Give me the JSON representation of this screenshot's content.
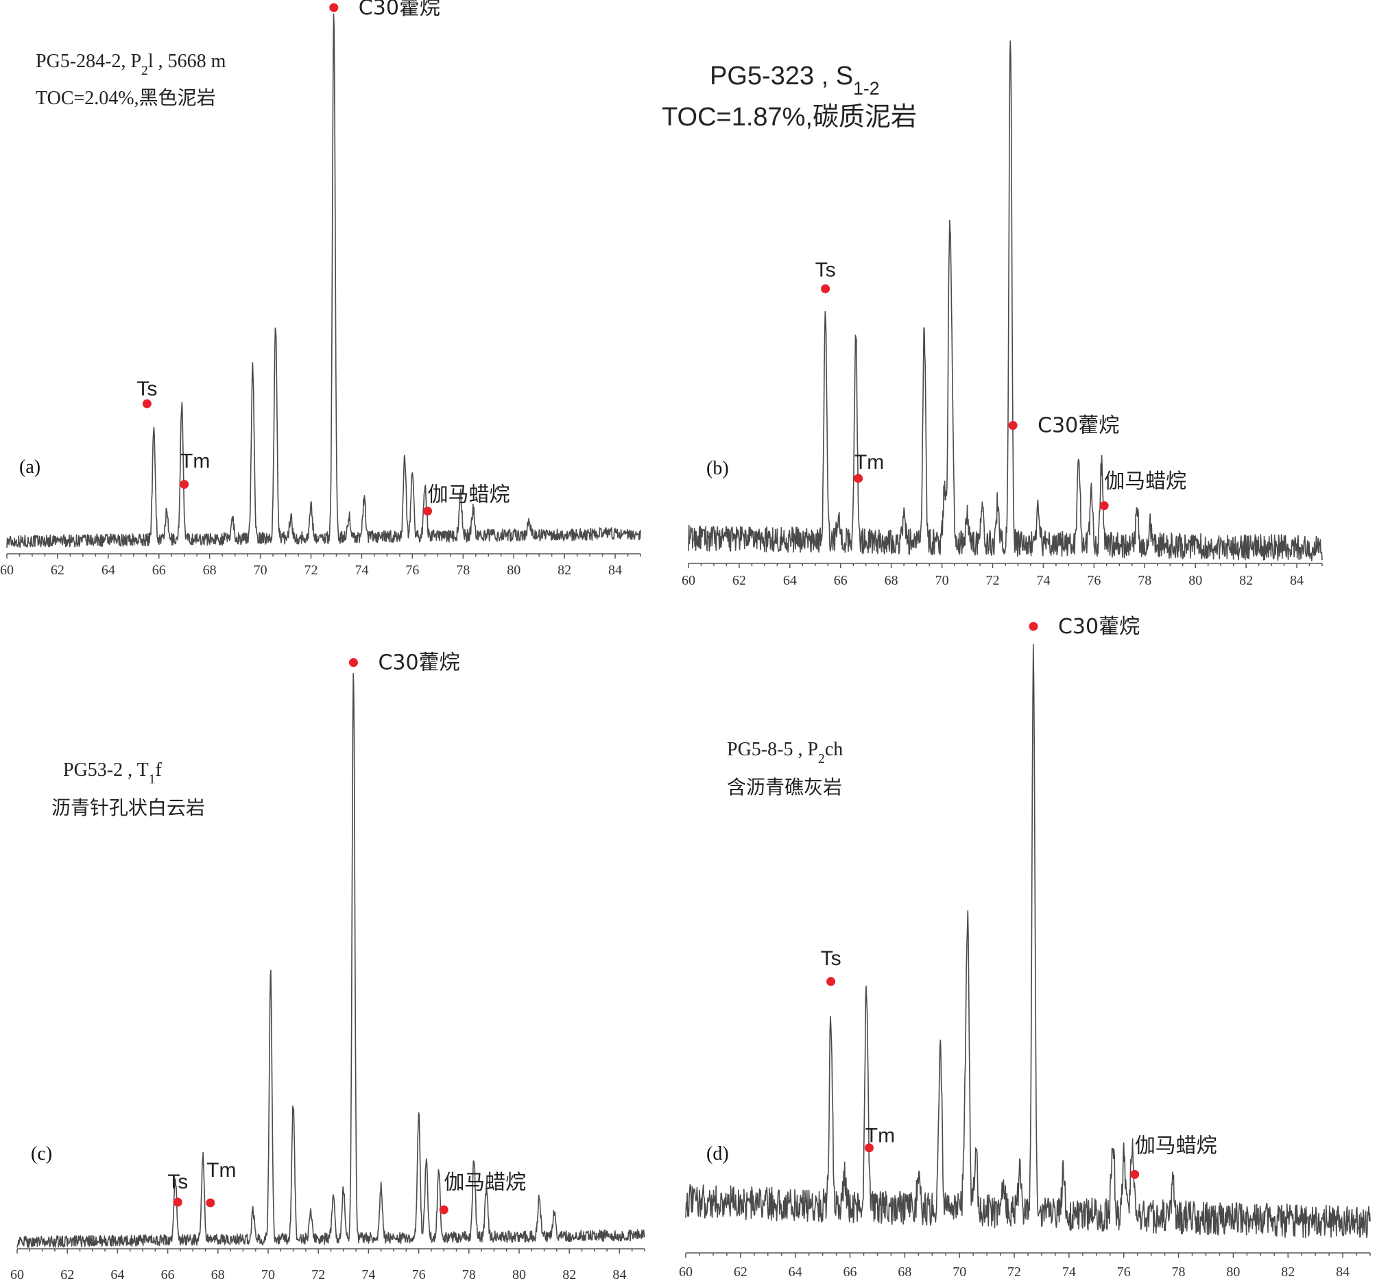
{
  "chart_data": [
    {
      "type": "line",
      "panel_label": "(a)",
      "info_lines": [
        {
          "parts": [
            {
              "t": "PG5-284-2, P"
            },
            {
              "t": "2",
              "sub": true
            },
            {
              "t": "l , 5668 m"
            }
          ]
        },
        {
          "parts": [
            {
              "t": "TOC=2.04%,黑色泥岩"
            }
          ]
        }
      ],
      "xlim": [
        60,
        85
      ],
      "x_ticks": [
        60,
        62,
        64,
        66,
        68,
        70,
        72,
        74,
        76,
        78,
        80,
        82,
        84
      ],
      "noise": 0.012,
      "baseline": [
        0.0,
        0.015
      ],
      "peaks": [
        {
          "x": 65.8,
          "h": 0.22
        },
        {
          "x": 66.3,
          "h": 0.05
        },
        {
          "x": 66.9,
          "h": 0.26
        },
        {
          "x": 68.9,
          "h": 0.04
        },
        {
          "x": 69.7,
          "h": 0.33
        },
        {
          "x": 70.6,
          "h": 0.41
        },
        {
          "x": 71.2,
          "h": 0.04
        },
        {
          "x": 72.0,
          "h": 0.06
        },
        {
          "x": 72.9,
          "h": 1.0
        },
        {
          "x": 73.5,
          "h": 0.04
        },
        {
          "x": 74.1,
          "h": 0.07
        },
        {
          "x": 75.7,
          "h": 0.15
        },
        {
          "x": 76.0,
          "h": 0.12
        },
        {
          "x": 76.5,
          "h": 0.1
        },
        {
          "x": 77.9,
          "h": 0.08
        },
        {
          "x": 78.4,
          "h": 0.05
        },
        {
          "x": 80.6,
          "h": 0.03
        }
      ],
      "annotations": [
        {
          "label": "Ts",
          "x": 65.8
        },
        {
          "label": "Tm",
          "x": 67.0
        },
        {
          "label": "C30藿烷",
          "x": 72.9
        },
        {
          "label": "伽马蜡烷",
          "x": 76.6
        }
      ],
      "marker_color": "#e8202a"
    },
    {
      "type": "line",
      "panel_label": "(b)",
      "info_lines": [
        {
          "parts": [
            {
              "t": "PG5-323 , S"
            },
            {
              "t": "1-2",
              "sub": true
            }
          ]
        },
        {
          "parts": [
            {
              "t": "TOC=1.87%,碳质泥岩"
            }
          ]
        }
      ],
      "xlim": [
        60,
        85
      ],
      "x_ticks": [
        60,
        62,
        64,
        66,
        68,
        70,
        72,
        74,
        76,
        78,
        80,
        82,
        84
      ],
      "noise": 0.025,
      "baseline": [
        0.02,
        0.0
      ],
      "peaks": [
        {
          "x": 65.4,
          "h": 0.44
        },
        {
          "x": 65.9,
          "h": 0.05
        },
        {
          "x": 66.6,
          "h": 0.41
        },
        {
          "x": 68.5,
          "h": 0.05
        },
        {
          "x": 69.3,
          "h": 0.42
        },
        {
          "x": 70.1,
          "h": 0.1
        },
        {
          "x": 70.3,
          "h": 0.58
        },
        {
          "x": 70.4,
          "h": 0.25
        },
        {
          "x": 71.0,
          "h": 0.06
        },
        {
          "x": 71.6,
          "h": 0.08
        },
        {
          "x": 72.2,
          "h": 0.08
        },
        {
          "x": 72.7,
          "h": 1.0
        },
        {
          "x": 73.8,
          "h": 0.08
        },
        {
          "x": 75.4,
          "h": 0.17
        },
        {
          "x": 75.9,
          "h": 0.1
        },
        {
          "x": 76.3,
          "h": 0.16
        },
        {
          "x": 77.7,
          "h": 0.06
        },
        {
          "x": 78.2,
          "h": 0.04
        }
      ],
      "annotations": [
        {
          "label": "Ts",
          "x": 65.4
        },
        {
          "label": "Tm",
          "x": 66.7
        },
        {
          "label": "C30藿烷",
          "x": 72.8
        },
        {
          "label": "伽马蜡烷",
          "x": 76.4
        }
      ],
      "marker_color": "#e8202a"
    },
    {
      "type": "line",
      "panel_label": "(c)",
      "info_lines": [
        {
          "parts": [
            {
              "t": "PG53-2 , T"
            },
            {
              "t": "1",
              "sub": true
            },
            {
              "t": "f"
            }
          ]
        },
        {
          "parts": [
            {
              "t": "沥青针孔状白云岩"
            }
          ]
        }
      ],
      "xlim": [
        60,
        85
      ],
      "x_ticks": [
        60,
        62,
        64,
        66,
        68,
        70,
        72,
        74,
        76,
        78,
        80,
        82,
        84
      ],
      "noise": 0.01,
      "baseline": [
        0.0,
        0.012
      ],
      "peaks": [
        {
          "x": 66.3,
          "h": 0.11
        },
        {
          "x": 67.4,
          "h": 0.15
        },
        {
          "x": 69.4,
          "h": 0.05
        },
        {
          "x": 70.1,
          "h": 0.47
        },
        {
          "x": 71.0,
          "h": 0.24
        },
        {
          "x": 71.7,
          "h": 0.05
        },
        {
          "x": 72.6,
          "h": 0.08
        },
        {
          "x": 73.0,
          "h": 0.09
        },
        {
          "x": 73.4,
          "h": 1.0
        },
        {
          "x": 74.5,
          "h": 0.09
        },
        {
          "x": 76.0,
          "h": 0.22
        },
        {
          "x": 76.3,
          "h": 0.14
        },
        {
          "x": 76.8,
          "h": 0.12
        },
        {
          "x": 78.2,
          "h": 0.14
        },
        {
          "x": 78.7,
          "h": 0.09
        },
        {
          "x": 80.8,
          "h": 0.07
        },
        {
          "x": 81.4,
          "h": 0.04
        }
      ],
      "annotations": [
        {
          "label": "Ts",
          "x": 66.4
        },
        {
          "label": "Tm",
          "x": 67.7
        },
        {
          "label": "C30藿烷",
          "x": 73.4
        },
        {
          "label": "伽马蜡烷",
          "x": 77.0
        }
      ],
      "marker_color": "#e8202a"
    },
    {
      "type": "line",
      "panel_label": "(d)",
      "info_lines": [
        {
          "parts": [
            {
              "t": "PG5-8-5 , P"
            },
            {
              "t": "2",
              "sub": true
            },
            {
              "t": "ch"
            }
          ]
        },
        {
          "parts": [
            {
              "t": "含沥青礁灰岩"
            }
          ]
        }
      ],
      "xlim": [
        60,
        85
      ],
      "x_ticks": [
        60,
        62,
        64,
        66,
        68,
        70,
        72,
        74,
        76,
        78,
        80,
        82,
        84
      ],
      "noise": 0.03,
      "baseline": [
        0.04,
        0.0
      ],
      "peaks": [
        {
          "x": 65.3,
          "h": 0.35
        },
        {
          "x": 65.8,
          "h": 0.05
        },
        {
          "x": 66.6,
          "h": 0.4
        },
        {
          "x": 68.5,
          "h": 0.05
        },
        {
          "x": 69.3,
          "h": 0.31
        },
        {
          "x": 70.2,
          "h": 0.14
        },
        {
          "x": 70.3,
          "h": 0.5
        },
        {
          "x": 70.6,
          "h": 0.1
        },
        {
          "x": 71.6,
          "h": 0.06
        },
        {
          "x": 72.2,
          "h": 0.07
        },
        {
          "x": 72.7,
          "h": 1.0
        },
        {
          "x": 73.8,
          "h": 0.08
        },
        {
          "x": 75.6,
          "h": 0.14
        },
        {
          "x": 76.0,
          "h": 0.1
        },
        {
          "x": 76.3,
          "h": 0.13
        },
        {
          "x": 77.8,
          "h": 0.06
        }
      ],
      "annotations": [
        {
          "label": "Ts",
          "x": 65.3
        },
        {
          "label": "Tm",
          "x": 66.7
        },
        {
          "label": "C30藿烷",
          "x": 72.7
        },
        {
          "label": "伽马蜡烷",
          "x": 76.4
        }
      ],
      "marker_color": "#e8202a"
    }
  ]
}
